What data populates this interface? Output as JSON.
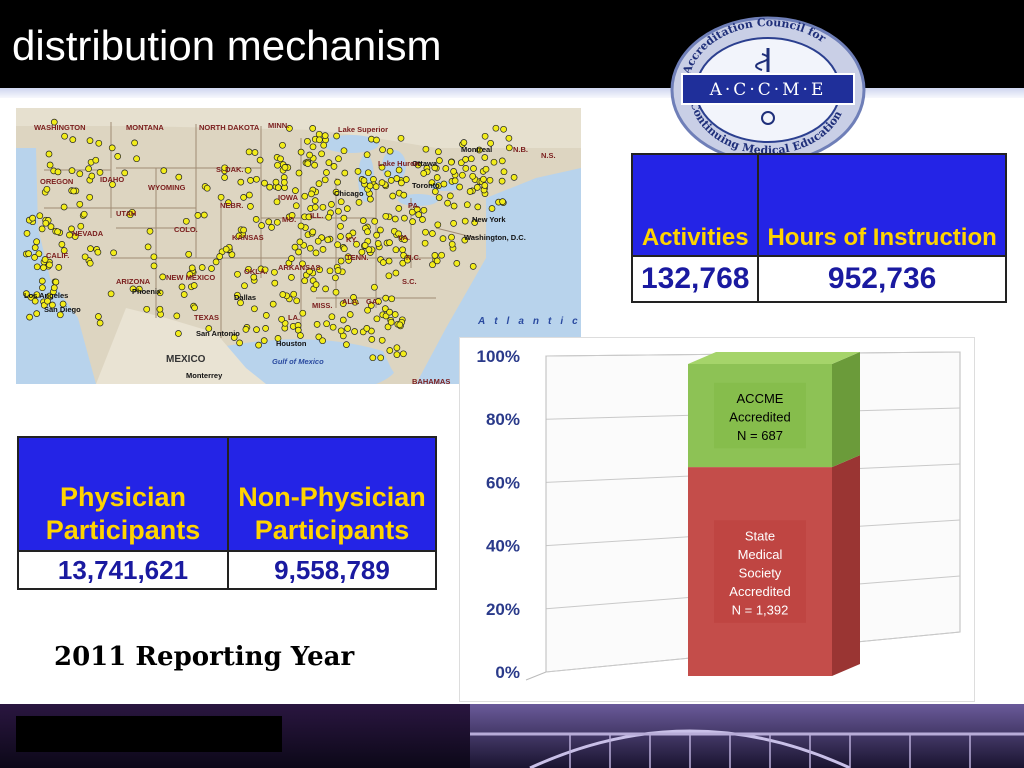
{
  "header": {
    "title": "distribution mechanism"
  },
  "logo": {
    "ring_text": "Accreditation Council for Continuing Medical Education",
    "letters": "A·C·C·M·E"
  },
  "map": {
    "labels": [
      "WASHINGTON",
      "MONTANA",
      "NORTH DAKOTA",
      "MINN.",
      "Lake Superior",
      "OREGON",
      "IDAHO",
      "WYOMING",
      "S. DAK.",
      "Ottawa",
      "Montreal",
      "N.B.",
      "N.S.",
      "NEVADA",
      "UTAH",
      "COLO.",
      "NEBR.",
      "KANSAS",
      "MO.",
      "IOWA",
      "ILL.",
      "Chicago",
      "Toronto",
      "New York",
      "Washington, D.C.",
      "PA.",
      "VA.",
      "KY.",
      "ARIZONA",
      "NEW MEXICO",
      "OKLA.",
      "ARKANSAS",
      "TENN.",
      "N.C.",
      "S.C.",
      "GA.",
      "ALA.",
      "MISS.",
      "LA.",
      "TEXAS",
      "Phoenix",
      "Los Angeles",
      "San Diego",
      "Dallas",
      "San Antonio",
      "Houston",
      "Gulf of Mexico",
      "MEXICO",
      "Monterrey",
      "Atlantic",
      "BAHAMAS",
      "CALIF.",
      "Lake Huron"
    ]
  },
  "table_top": {
    "headers": [
      "Activities",
      "Hours of Instruction"
    ],
    "values": [
      "132,768",
      "952,736"
    ]
  },
  "table_bottom": {
    "headers": [
      "Physician Participants",
      "Non-Physician Participants"
    ],
    "values": [
      "13,741,621",
      "9,558,789"
    ]
  },
  "year_label": "2011 Reporting Year",
  "chart_data": {
    "type": "bar",
    "stacked": true,
    "percent": true,
    "yticks": [
      "100%",
      "80%",
      "60%",
      "40%",
      "20%",
      "0%"
    ],
    "ylim": [
      0,
      100
    ],
    "series": [
      {
        "label_lines": [
          "State",
          "Medical",
          "Society",
          "Accredited",
          "N = 1,392"
        ],
        "count": 1392,
        "color": "#c44d4a"
      },
      {
        "label_lines": [
          "ACCME",
          "Accredited",
          "N = 687"
        ],
        "count": 687,
        "color": "#8dc255"
      }
    ]
  }
}
